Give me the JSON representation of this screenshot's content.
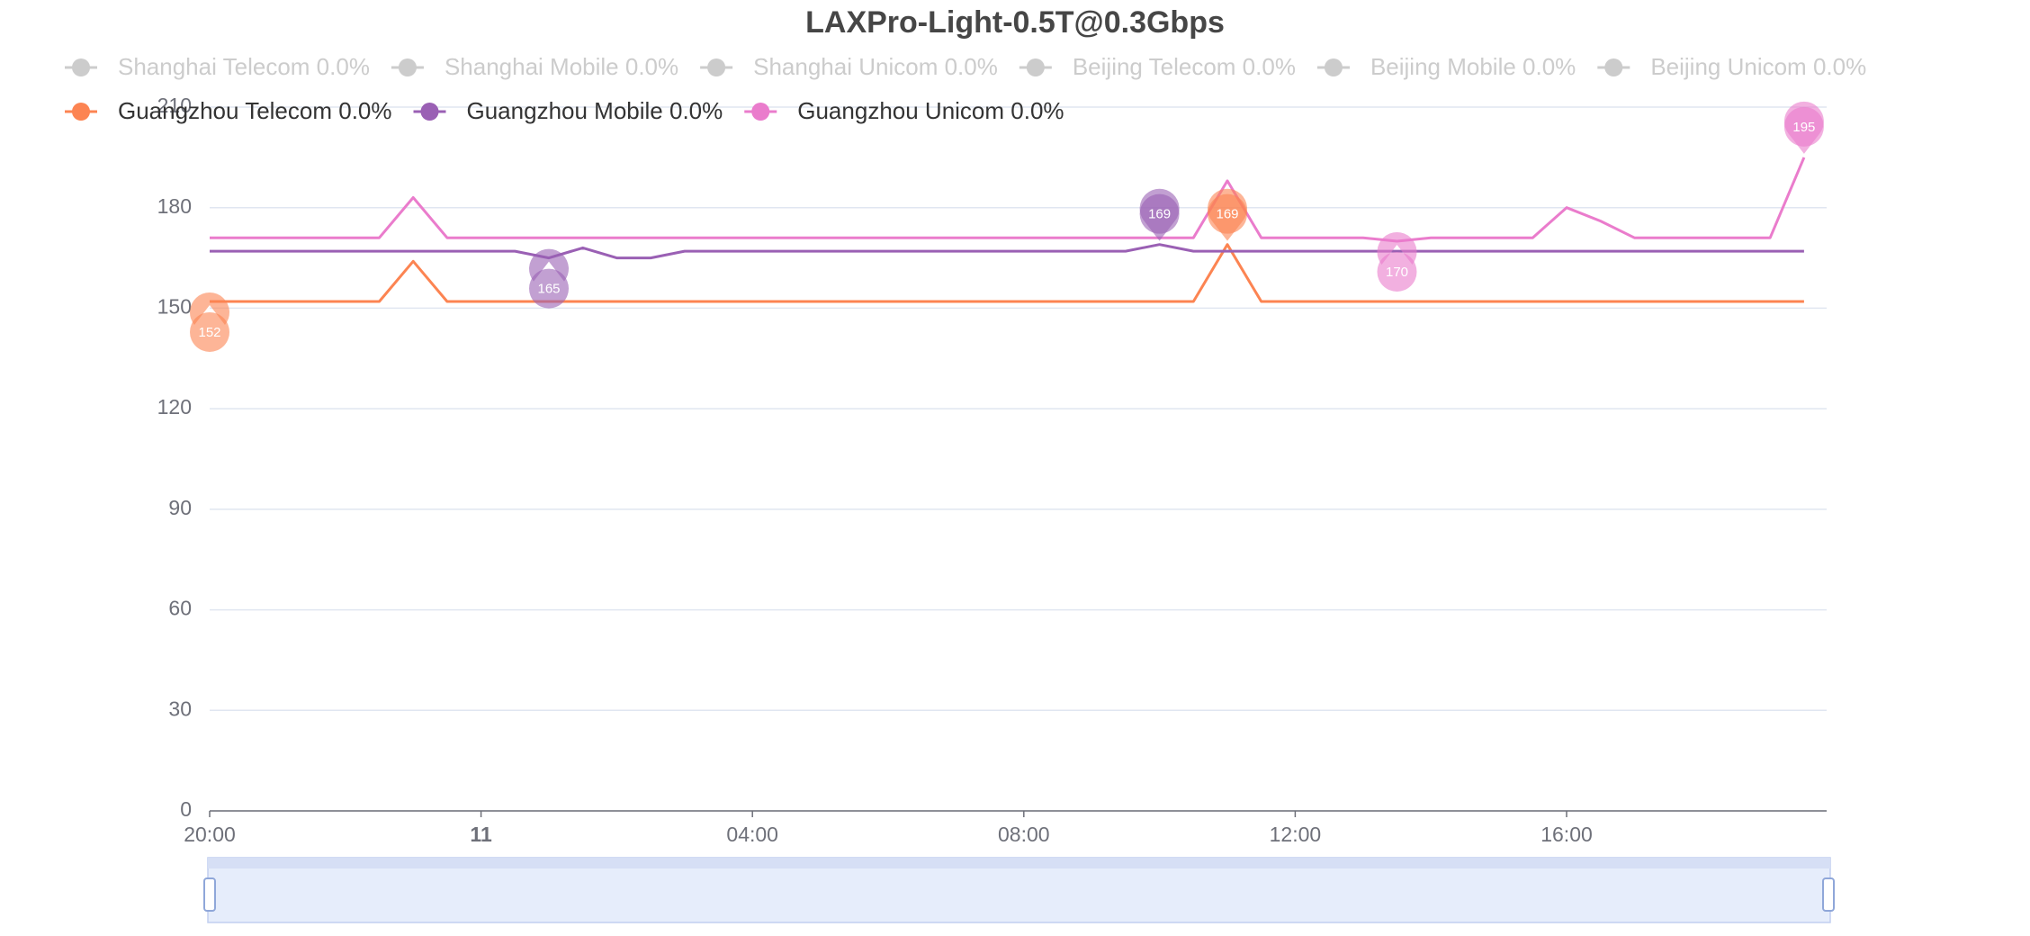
{
  "chart_data": {
    "type": "line",
    "title": "LAXPro-Light-0.5T@0.3Gbps",
    "x": [
      "20:00",
      "20:30",
      "21:00",
      "21:30",
      "22:00",
      "22:30",
      "23:00",
      "23:30",
      "00:00",
      "00:30",
      "01:00",
      "01:30",
      "02:00",
      "02:30",
      "03:00",
      "03:30",
      "04:00",
      "04:30",
      "05:00",
      "05:30",
      "06:00",
      "06:30",
      "07:00",
      "07:30",
      "08:00",
      "08:30",
      "09:00",
      "09:30",
      "10:00",
      "10:30",
      "11:00",
      "11:30",
      "12:00",
      "12:30",
      "13:00",
      "13:30",
      "14:00",
      "14:30",
      "15:00",
      "15:30",
      "16:00",
      "16:30",
      "17:00",
      "17:30",
      "18:00",
      "18:30",
      "19:00",
      "19:30"
    ],
    "xticks": [
      "20:00",
      {
        "value": "00:00",
        "label": "11"
      },
      "04:00",
      "08:00",
      "12:00",
      "16:00"
    ],
    "ylim": [
      0,
      210
    ],
    "yticks": [
      0,
      30,
      60,
      90,
      120,
      150,
      180,
      210
    ],
    "grid": true,
    "hidden_series": [
      {
        "name": "Shanghai Telecom 0.0%",
        "color": "#cccccc"
      },
      {
        "name": "Shanghai Mobile 0.0%",
        "color": "#cccccc"
      },
      {
        "name": "Shanghai Unicom 0.0%",
        "color": "#cccccc"
      },
      {
        "name": "Beijing Telecom 0.0%",
        "color": "#cccccc"
      },
      {
        "name": "Beijing Mobile 0.0%",
        "color": "#cccccc"
      },
      {
        "name": "Beijing Unicom 0.0%",
        "color": "#cccccc"
      }
    ],
    "series": [
      {
        "name": "Guangzhou Telecom 0.0%",
        "color": "#fc8452",
        "values": [
          152,
          152,
          152,
          152,
          152,
          152,
          164,
          152,
          152,
          152,
          152,
          152,
          152,
          152,
          152,
          152,
          152,
          152,
          152,
          152,
          152,
          152,
          152,
          152,
          152,
          152,
          152,
          152,
          152,
          152,
          169,
          152,
          152,
          152,
          152,
          152,
          152,
          152,
          152,
          152,
          152,
          152,
          152,
          152,
          152,
          152,
          152,
          152
        ]
      },
      {
        "name": "Guangzhou Mobile 0.0%",
        "color": "#9a60b4",
        "values": [
          167,
          167,
          167,
          167,
          167,
          167,
          167,
          167,
          167,
          167,
          165,
          168,
          165,
          165,
          167,
          167,
          167,
          167,
          167,
          167,
          167,
          167,
          167,
          167,
          167,
          167,
          167,
          167,
          169,
          167,
          167,
          167,
          167,
          167,
          167,
          167,
          167,
          167,
          167,
          167,
          167,
          167,
          167,
          167,
          167,
          167,
          167,
          167
        ]
      },
      {
        "name": "Guangzhou Unicom 0.0%",
        "color": "#ea7ccc",
        "values": [
          171,
          171,
          171,
          171,
          171,
          171,
          183,
          171,
          171,
          171,
          171,
          171,
          171,
          171,
          171,
          171,
          171,
          171,
          171,
          171,
          171,
          171,
          171,
          171,
          171,
          171,
          171,
          171,
          171,
          171,
          188,
          171,
          171,
          171,
          171,
          170,
          171,
          171,
          171,
          171,
          180,
          176,
          171,
          171,
          171,
          171,
          171,
          195
        ]
      }
    ]
  }
}
